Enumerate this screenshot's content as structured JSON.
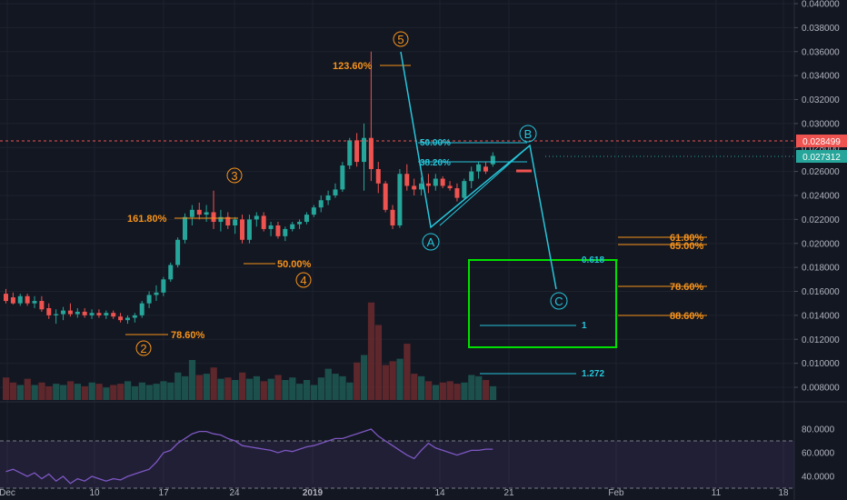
{
  "chart_data": [
    {
      "type": "candlestick",
      "title": "",
      "ylim": [
        0.0065,
        0.0405
      ],
      "price_axis_ticks": [
        "0.040000",
        "0.038000",
        "0.036000",
        "0.034000",
        "0.032000",
        "0.030000",
        "0.028000",
        "0.026000",
        "0.024000",
        "0.022000",
        "0.020000",
        "0.018000",
        "0.016000",
        "0.014000",
        "0.012000",
        "0.010000",
        "0.008000"
      ],
      "date_axis_ticks": [
        "Dec",
        "10",
        "17",
        "24",
        "2019",
        "14",
        "21",
        "Feb",
        "11",
        "18"
      ],
      "grid": true,
      "candles": [
        {
          "o": 0.0158,
          "h": 0.0162,
          "l": 0.015,
          "c": 0.0152
        },
        {
          "o": 0.0155,
          "h": 0.0159,
          "l": 0.0149,
          "c": 0.015
        },
        {
          "o": 0.015,
          "h": 0.0158,
          "l": 0.0148,
          "c": 0.0156
        },
        {
          "o": 0.0156,
          "h": 0.0158,
          "l": 0.0148,
          "c": 0.015
        },
        {
          "o": 0.015,
          "h": 0.0156,
          "l": 0.0146,
          "c": 0.0152
        },
        {
          "o": 0.0152,
          "h": 0.0156,
          "l": 0.0143,
          "c": 0.0145
        },
        {
          "o": 0.0146,
          "h": 0.015,
          "l": 0.0137,
          "c": 0.014
        },
        {
          "o": 0.014,
          "h": 0.0145,
          "l": 0.0133,
          "c": 0.0141
        },
        {
          "o": 0.0141,
          "h": 0.0147,
          "l": 0.0136,
          "c": 0.0144
        },
        {
          "o": 0.0144,
          "h": 0.015,
          "l": 0.0139,
          "c": 0.0141
        },
        {
          "o": 0.0141,
          "h": 0.0146,
          "l": 0.0138,
          "c": 0.0143
        },
        {
          "o": 0.0143,
          "h": 0.0146,
          "l": 0.0138,
          "c": 0.014
        },
        {
          "o": 0.014,
          "h": 0.0145,
          "l": 0.0137,
          "c": 0.0142
        },
        {
          "o": 0.0142,
          "h": 0.0145,
          "l": 0.0138,
          "c": 0.014
        },
        {
          "o": 0.014,
          "h": 0.0144,
          "l": 0.0137,
          "c": 0.0142
        },
        {
          "o": 0.0142,
          "h": 0.0144,
          "l": 0.0137,
          "c": 0.0139
        },
        {
          "o": 0.0139,
          "h": 0.0142,
          "l": 0.0134,
          "c": 0.0136
        },
        {
          "o": 0.0136,
          "h": 0.014,
          "l": 0.0133,
          "c": 0.0138
        },
        {
          "o": 0.0138,
          "h": 0.0142,
          "l": 0.0134,
          "c": 0.014
        },
        {
          "o": 0.014,
          "h": 0.0152,
          "l": 0.0138,
          "c": 0.015
        },
        {
          "o": 0.015,
          "h": 0.016,
          "l": 0.0146,
          "c": 0.0157
        },
        {
          "o": 0.0157,
          "h": 0.0165,
          "l": 0.0152,
          "c": 0.0159
        },
        {
          "o": 0.0159,
          "h": 0.0172,
          "l": 0.0156,
          "c": 0.017
        },
        {
          "o": 0.017,
          "h": 0.0184,
          "l": 0.0168,
          "c": 0.0182
        },
        {
          "o": 0.0182,
          "h": 0.0205,
          "l": 0.018,
          "c": 0.0203
        },
        {
          "o": 0.0203,
          "h": 0.0225,
          "l": 0.02,
          "c": 0.0222
        },
        {
          "o": 0.0222,
          "h": 0.0232,
          "l": 0.0215,
          "c": 0.0228
        },
        {
          "o": 0.0228,
          "h": 0.0234,
          "l": 0.022,
          "c": 0.0224
        },
        {
          "o": 0.0224,
          "h": 0.0232,
          "l": 0.0218,
          "c": 0.0226
        },
        {
          "o": 0.0226,
          "h": 0.0244,
          "l": 0.0212,
          "c": 0.0218
        },
        {
          "o": 0.0218,
          "h": 0.0228,
          "l": 0.021,
          "c": 0.0222
        },
        {
          "o": 0.0222,
          "h": 0.0226,
          "l": 0.0212,
          "c": 0.0215
        },
        {
          "o": 0.0215,
          "h": 0.0222,
          "l": 0.0208,
          "c": 0.022
        },
        {
          "o": 0.022,
          "h": 0.0224,
          "l": 0.02,
          "c": 0.0203
        },
        {
          "o": 0.0203,
          "h": 0.0224,
          "l": 0.02,
          "c": 0.022
        },
        {
          "o": 0.022,
          "h": 0.0226,
          "l": 0.0214,
          "c": 0.0223
        },
        {
          "o": 0.0223,
          "h": 0.0226,
          "l": 0.021,
          "c": 0.0212
        },
        {
          "o": 0.0212,
          "h": 0.0218,
          "l": 0.0206,
          "c": 0.0215
        },
        {
          "o": 0.0215,
          "h": 0.0218,
          "l": 0.0204,
          "c": 0.0206
        },
        {
          "o": 0.0206,
          "h": 0.0214,
          "l": 0.0202,
          "c": 0.0212
        },
        {
          "o": 0.0212,
          "h": 0.0218,
          "l": 0.021,
          "c": 0.0216
        },
        {
          "o": 0.0216,
          "h": 0.022,
          "l": 0.0212,
          "c": 0.0218
        },
        {
          "o": 0.0218,
          "h": 0.0226,
          "l": 0.0216,
          "c": 0.0224
        },
        {
          "o": 0.0224,
          "h": 0.0232,
          "l": 0.0222,
          "c": 0.023
        },
        {
          "o": 0.023,
          "h": 0.024,
          "l": 0.0226,
          "c": 0.0236
        },
        {
          "o": 0.0236,
          "h": 0.0244,
          "l": 0.0232,
          "c": 0.024
        },
        {
          "o": 0.024,
          "h": 0.025,
          "l": 0.0238,
          "c": 0.0245
        },
        {
          "o": 0.0245,
          "h": 0.0268,
          "l": 0.0243,
          "c": 0.0265
        },
        {
          "o": 0.0265,
          "h": 0.0288,
          "l": 0.0262,
          "c": 0.0286
        },
        {
          "o": 0.0286,
          "h": 0.0292,
          "l": 0.0264,
          "c": 0.0268
        },
        {
          "o": 0.0268,
          "h": 0.03,
          "l": 0.0244,
          "c": 0.0288
        },
        {
          "o": 0.0288,
          "h": 0.036,
          "l": 0.0252,
          "c": 0.0262
        },
        {
          "o": 0.0262,
          "h": 0.0268,
          "l": 0.0242,
          "c": 0.025
        },
        {
          "o": 0.025,
          "h": 0.0252,
          "l": 0.0226,
          "c": 0.0228
        },
        {
          "o": 0.0228,
          "h": 0.0232,
          "l": 0.0212,
          "c": 0.0215
        },
        {
          "o": 0.0215,
          "h": 0.0262,
          "l": 0.0213,
          "c": 0.0258
        },
        {
          "o": 0.0258,
          "h": 0.0266,
          "l": 0.0244,
          "c": 0.0248
        },
        {
          "o": 0.0248,
          "h": 0.0254,
          "l": 0.024,
          "c": 0.0245
        },
        {
          "o": 0.0245,
          "h": 0.0255,
          "l": 0.024,
          "c": 0.025
        },
        {
          "o": 0.025,
          "h": 0.0258,
          "l": 0.0242,
          "c": 0.0248
        },
        {
          "o": 0.0248,
          "h": 0.0258,
          "l": 0.0244,
          "c": 0.0254
        },
        {
          "o": 0.0254,
          "h": 0.0256,
          "l": 0.0246,
          "c": 0.0248
        },
        {
          "o": 0.0248,
          "h": 0.0252,
          "l": 0.0244,
          "c": 0.0246
        },
        {
          "o": 0.0246,
          "h": 0.025,
          "l": 0.0235,
          "c": 0.0238
        },
        {
          "o": 0.0238,
          "h": 0.0254,
          "l": 0.0236,
          "c": 0.0252
        },
        {
          "o": 0.0252,
          "h": 0.0264,
          "l": 0.0246,
          "c": 0.026
        },
        {
          "o": 0.026,
          "h": 0.0268,
          "l": 0.0254,
          "c": 0.0266
        },
        {
          "o": 0.0264,
          "h": 0.0268,
          "l": 0.0258,
          "c": 0.026
        },
        {
          "o": 0.0266,
          "h": 0.0276,
          "l": 0.0264,
          "c": 0.0273
        }
      ],
      "volume": [
        18,
        14,
        12,
        17,
        12,
        14,
        11,
        13,
        12,
        15,
        13,
        11,
        14,
        13,
        10,
        12,
        13,
        15,
        11,
        14,
        12,
        13,
        15,
        14,
        22,
        19,
        32,
        20,
        21,
        26,
        17,
        18,
        16,
        22,
        17,
        19,
        15,
        17,
        20,
        16,
        18,
        13,
        16,
        12,
        18,
        25,
        21,
        19,
        14,
        30,
        36,
        78,
        60,
        28,
        31,
        33,
        45,
        21,
        19,
        15,
        12,
        14,
        15,
        13,
        14,
        20,
        19,
        16,
        11
      ],
      "current_price": "0.027312",
      "current_price_color": "#26a69a",
      "marked_price": "0.028499",
      "marked_price_color": "#ef5350",
      "wave_labels": [
        "2",
        "3",
        "4",
        "5",
        "A",
        "B",
        "C"
      ],
      "fib_labels_orange": [
        "78.60%",
        "161.80%",
        "50.00%",
        "123.60%",
        "61.80%",
        "65.00%",
        "78.60%",
        "88.60%"
      ],
      "fib_labels_cyan": [
        "50.00%",
        "38.20%",
        "0.618",
        "1",
        "1.272"
      ],
      "colors": {
        "up": "#26a69a",
        "down": "#ef5350",
        "wave": "#f7931a",
        "abc": "#26c6da",
        "box": "#00e000",
        "rsi": "#7e57c2"
      }
    },
    {
      "type": "line",
      "name": "",
      "ylim": [
        30,
        84
      ],
      "ticks": [
        "80.0000",
        "60.0000",
        "40.0000"
      ],
      "bands": [
        70,
        30
      ],
      "values": [
        44,
        46,
        43,
        40,
        43,
        38,
        42,
        36,
        40,
        34,
        38,
        36,
        40,
        38,
        36,
        38,
        37,
        40,
        42,
        44,
        46,
        52,
        60,
        62,
        68,
        72,
        76,
        78,
        78,
        76,
        75,
        72,
        70,
        66,
        65,
        64,
        63,
        62,
        60,
        62,
        61,
        63,
        65,
        66,
        68,
        70,
        72,
        72,
        74,
        76,
        78,
        80,
        74,
        70,
        66,
        62,
        58,
        55,
        62,
        68,
        64,
        62,
        60,
        58,
        60,
        62,
        62,
        63,
        63
      ],
      "color": "#7e57c2"
    }
  ]
}
